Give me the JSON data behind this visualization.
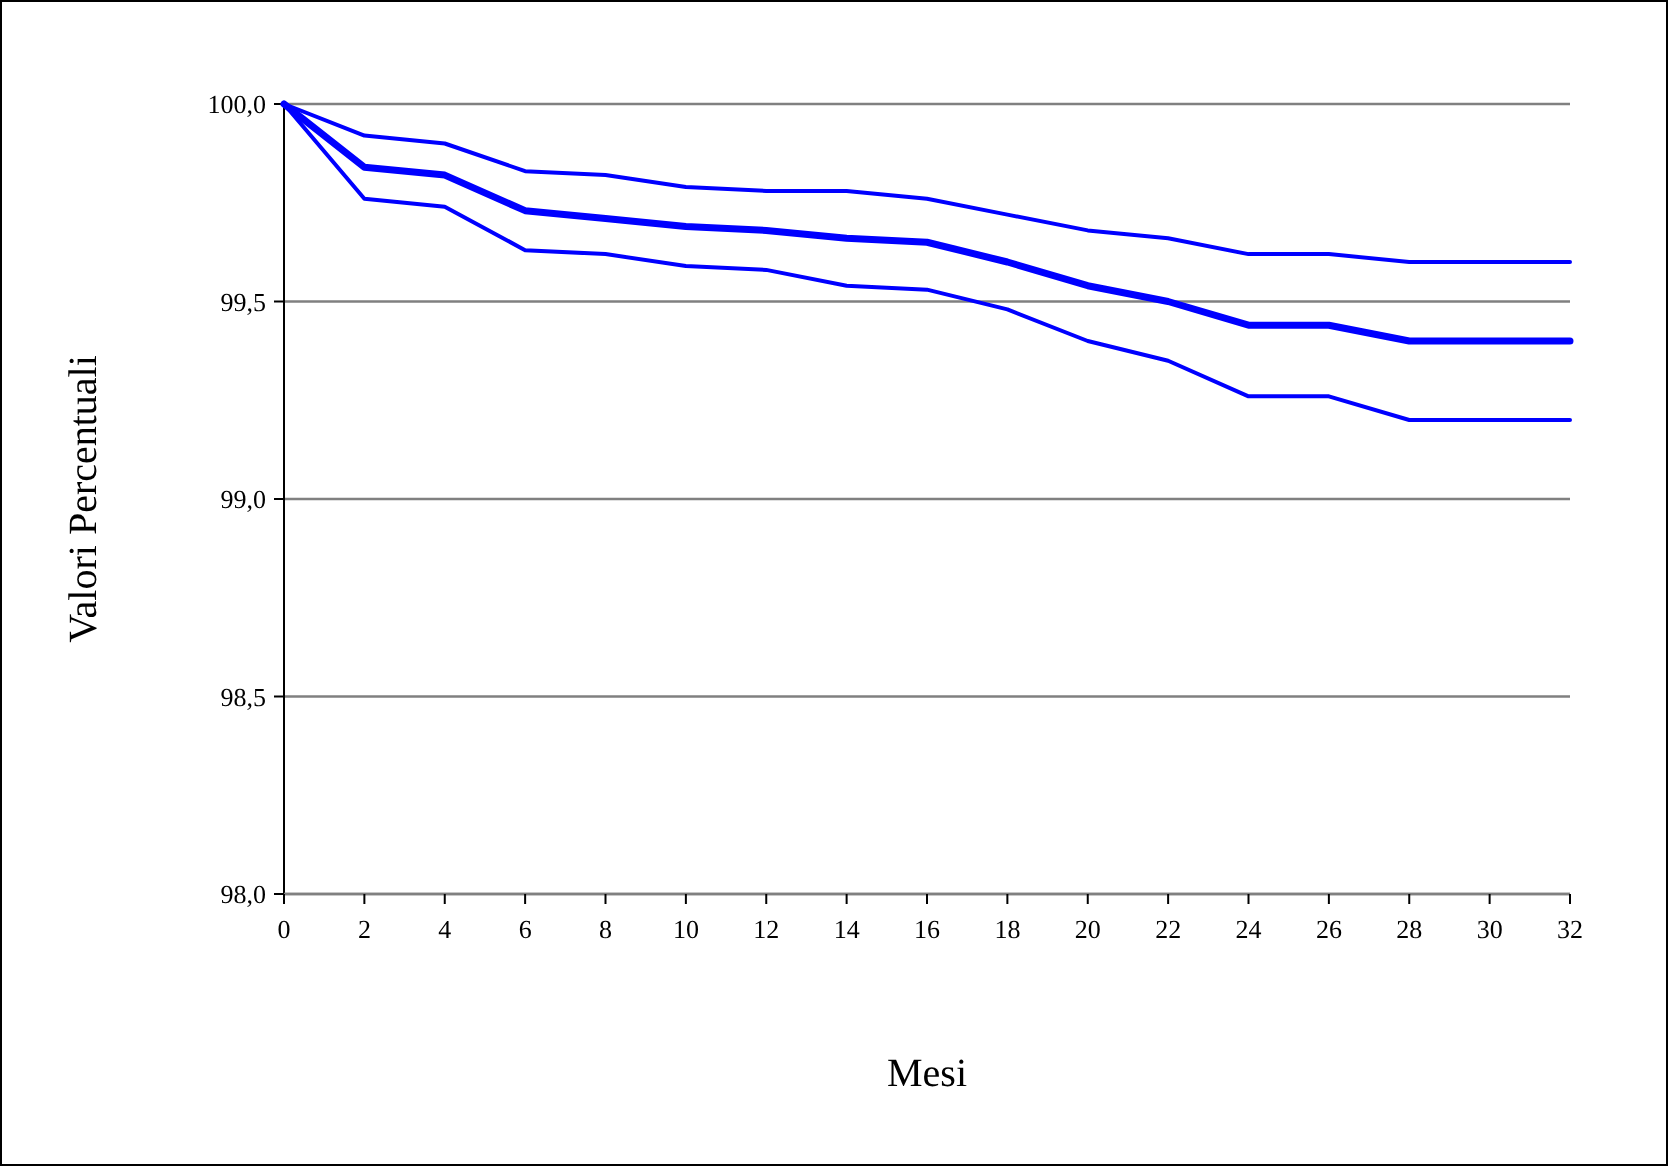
{
  "chart_data": {
    "type": "line",
    "xlabel": "Mesi",
    "ylabel": "Valori Percentuali",
    "x": [
      0,
      2,
      4,
      6,
      8,
      10,
      12,
      14,
      16,
      18,
      20,
      22,
      24,
      26,
      28,
      30,
      32
    ],
    "series": [
      {
        "color": "#0000ff",
        "values": [
          100,
          99.92,
          99.9,
          99.83,
          99.82,
          99.79,
          99.78,
          99.78,
          99.76,
          99.72,
          99.68,
          99.66,
          99.62,
          99.62,
          99.6,
          99.6,
          99.6
        ]
      },
      {
        "color": "#0000ff",
        "values": [
          100,
          99.84,
          99.82,
          99.73,
          99.71,
          99.69,
          99.68,
          99.66,
          99.65,
          99.6,
          99.54,
          99.5,
          99.44,
          99.44,
          99.4,
          99.4,
          99.4
        ]
      },
      {
        "color": "#0000ff",
        "values": [
          100,
          99.76,
          99.74,
          99.63,
          99.62,
          99.59,
          99.58,
          99.54,
          99.53,
          99.48,
          99.4,
          99.35,
          99.26,
          99.26,
          99.2,
          99.2,
          99.2
        ]
      }
    ],
    "xlim": [
      0,
      32
    ],
    "xticks": [
      0,
      2,
      4,
      6,
      8,
      10,
      12,
      14,
      16,
      18,
      20,
      22,
      24,
      26,
      28,
      30,
      32
    ],
    "ylim": [
      98,
      100
    ],
    "yticks": [
      {
        "value": 98,
        "label": "98,0"
      },
      {
        "value": 98.5,
        "label": "98,5"
      },
      {
        "value": 99,
        "label": "99,0"
      },
      {
        "value": 99.5,
        "label": "99,5"
      },
      {
        "value": 100,
        "label": "100,0"
      }
    ],
    "grid": "y",
    "marker": "none",
    "line_style": "solid"
  }
}
